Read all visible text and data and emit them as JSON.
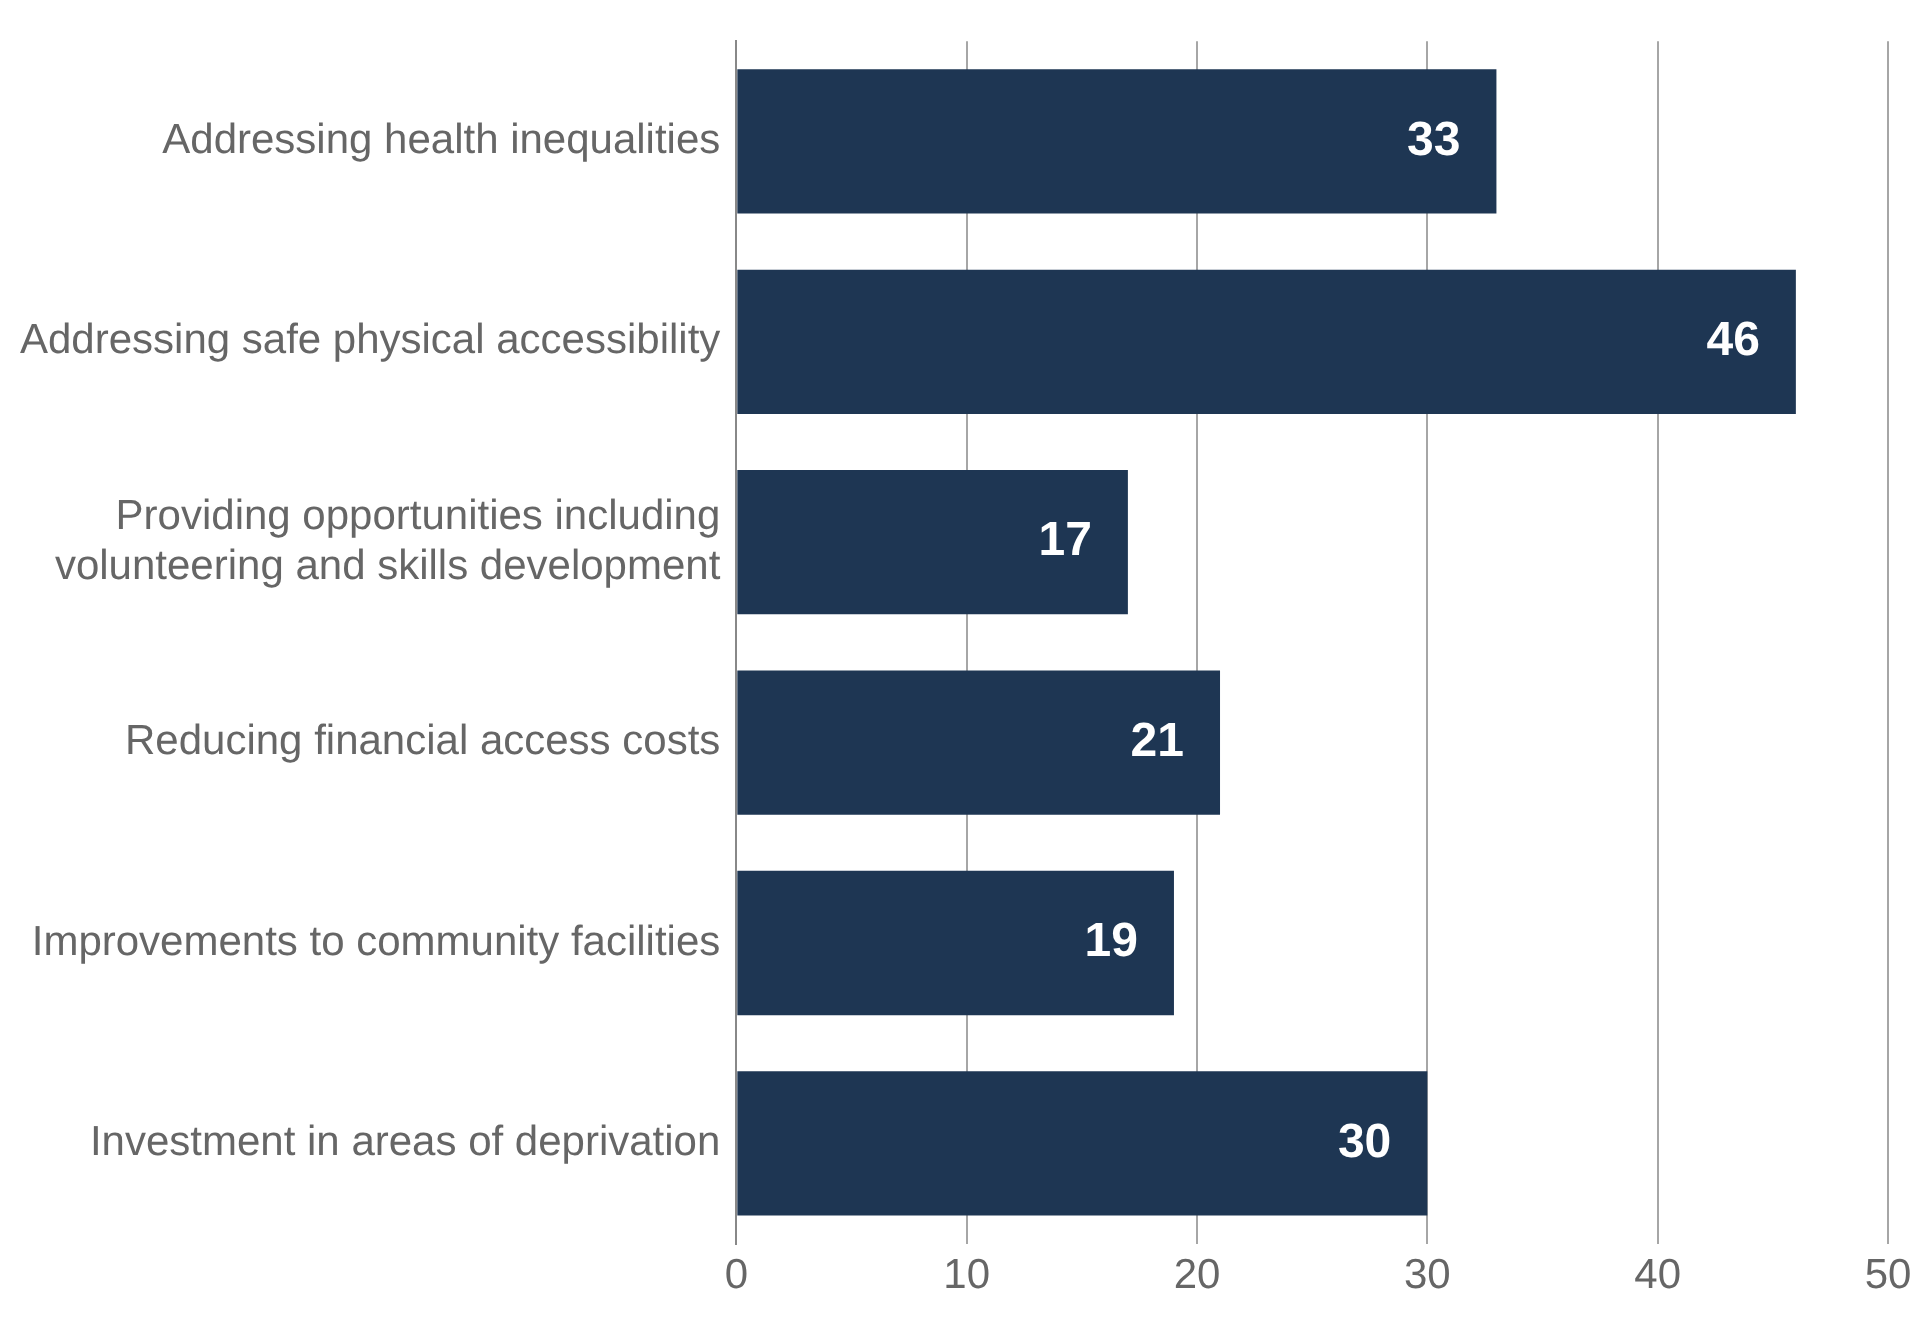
{
  "chart_data": {
    "type": "bar",
    "orientation": "horizontal",
    "categories": [
      "Addressing health inequalities",
      "Addressing safe physical accessibility",
      "Providing opportunities including volunteering and skills development",
      "Reducing financial access costs",
      "Improvements to community facilities",
      "Investment in areas of deprivation"
    ],
    "values": [
      33,
      46,
      17,
      21,
      19,
      30
    ],
    "color": "#1e3653",
    "xlim": [
      0,
      50
    ],
    "xticks": [
      0,
      10,
      20,
      30,
      40,
      50
    ],
    "grid": "x",
    "data_labels": true,
    "legend": false
  }
}
